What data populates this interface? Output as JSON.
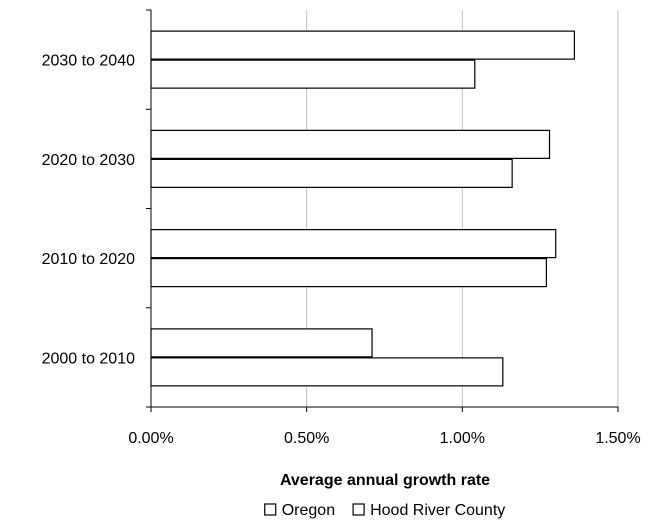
{
  "chart_data": {
    "type": "bar",
    "orientation": "horizontal",
    "categories": [
      "2030 to 2040",
      "2020 to 2030",
      "2010 to 2020",
      "2000 to 2010"
    ],
    "series": [
      {
        "name": "Oregon",
        "values": [
          1.36,
          1.28,
          1.3,
          0.71
        ]
      },
      {
        "name": "Hood River County",
        "values": [
          1.04,
          1.16,
          1.27,
          1.13
        ]
      }
    ],
    "xlabel": "Average annual growth rate",
    "ylabel": "",
    "xlim": [
      0,
      1.5
    ],
    "x_ticks": [
      0,
      0.5,
      1.0,
      1.5
    ],
    "x_tick_labels": [
      "0.00%",
      "0.50%",
      "1.00%",
      "1.50%"
    ],
    "grid": "vertical",
    "legend_position": "bottom",
    "colors": {
      "bar_fill": "#ffffff",
      "bar_stroke": "#000000",
      "gridline": "#c0c0c0",
      "axis": "#000000"
    }
  }
}
